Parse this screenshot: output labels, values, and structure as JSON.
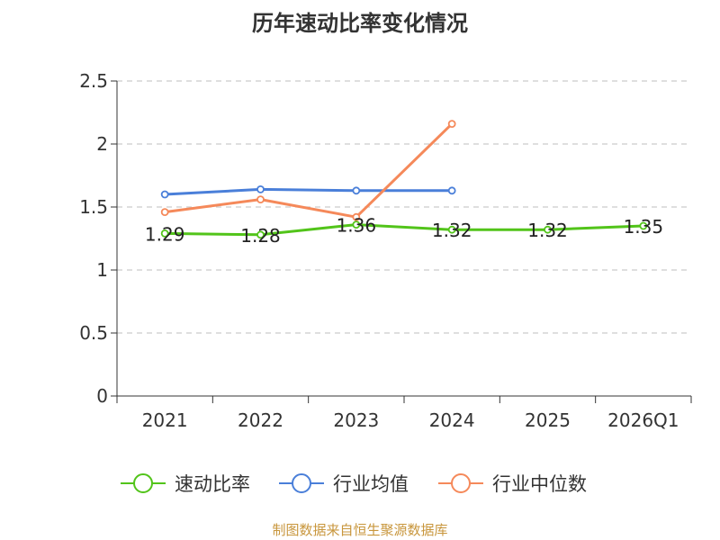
{
  "chart_data": {
    "type": "line",
    "title": "历年速动比率变化情况",
    "categories": [
      "2021",
      "2022",
      "2023",
      "2024",
      "2025",
      "2026Q1"
    ],
    "y_ticks": [
      "0",
      "0.5",
      "1",
      "1.5",
      "2",
      "2.5"
    ],
    "ylim": [
      0,
      2.5
    ],
    "grid": true,
    "legend_position": "bottom",
    "series": [
      {
        "name": "速动比率",
        "color": "#52c41a",
        "values": [
          1.29,
          1.28,
          1.36,
          1.32,
          1.32,
          1.35
        ],
        "labels": [
          "1.29",
          "1.28",
          "1.36",
          "1.32",
          "1.32",
          "1.35"
        ]
      },
      {
        "name": "行业均值",
        "color": "#4a7fd9",
        "values": [
          1.6,
          1.64,
          1.63,
          1.63,
          null,
          null
        ]
      },
      {
        "name": "行业中位数",
        "color": "#f5895a",
        "values": [
          1.46,
          1.56,
          1.42,
          2.16,
          null,
          null
        ]
      }
    ]
  },
  "source": "制图数据来自恒生聚源数据库"
}
